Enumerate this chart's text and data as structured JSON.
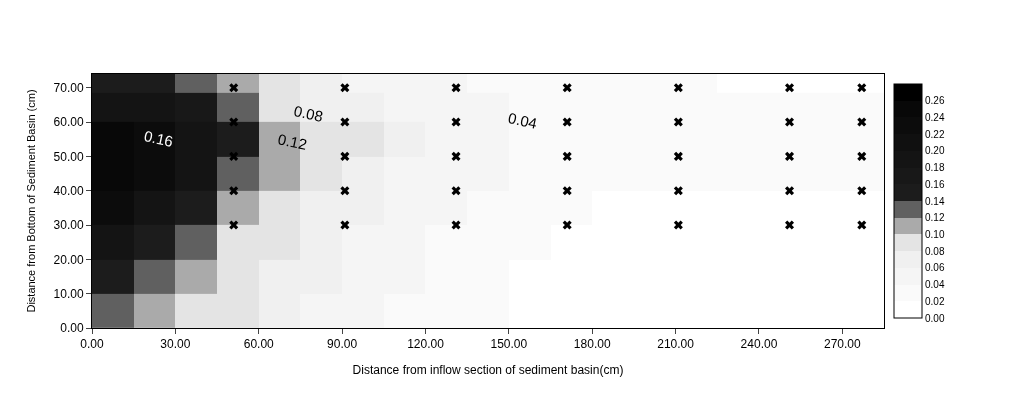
{
  "chart_data": {
    "type": "heatmap",
    "xlabel": "Distance from inflow section of sediment basin(cm)",
    "ylabel": "Distance from Bottom of Sediment Basin (cm)",
    "x": [
      7.5,
      22.5,
      37.5,
      52.5,
      67.5,
      82.5,
      97.5,
      112.5,
      127.5,
      142.5,
      157.5,
      172.5,
      187.5,
      202.5,
      217.5,
      232.5,
      247.5,
      262.5,
      277.5
    ],
    "y": [
      72,
      65,
      55,
      45,
      35,
      25,
      15,
      5
    ],
    "cells": [
      [
        0.15,
        0.15,
        0.13,
        0.11,
        0.09,
        0.07,
        0.05,
        0.05,
        0.05,
        0.03,
        0.03,
        0.03,
        0.03,
        0.03,
        0.03,
        0.01,
        0.01,
        0.01,
        0.01
      ],
      [
        0.19,
        0.19,
        0.17,
        0.13,
        0.09,
        0.07,
        0.07,
        0.05,
        0.05,
        0.05,
        0.03,
        0.03,
        0.03,
        0.03,
        0.03,
        0.03,
        0.03,
        0.03,
        0.03
      ],
      [
        0.25,
        0.23,
        0.19,
        0.15,
        0.11,
        0.09,
        0.09,
        0.07,
        0.05,
        0.05,
        0.03,
        0.03,
        0.03,
        0.03,
        0.03,
        0.03,
        0.03,
        0.03,
        0.03
      ],
      [
        0.25,
        0.23,
        0.19,
        0.13,
        0.11,
        0.09,
        0.07,
        0.05,
        0.05,
        0.05,
        0.03,
        0.03,
        0.03,
        0.03,
        0.03,
        0.03,
        0.03,
        0.03,
        0.03
      ],
      [
        0.23,
        0.19,
        0.15,
        0.11,
        0.09,
        0.07,
        0.07,
        0.05,
        0.05,
        0.03,
        0.03,
        0.03,
        0.01,
        0.01,
        0.01,
        0.01,
        0.01,
        0.01,
        0.01
      ],
      [
        0.19,
        0.15,
        0.13,
        0.09,
        0.09,
        0.07,
        0.05,
        0.05,
        0.03,
        0.03,
        0.03,
        0.01,
        0.01,
        0.01,
        0.01,
        0.01,
        0.01,
        0.01,
        0.01
      ],
      [
        0.15,
        0.13,
        0.11,
        0.09,
        0.07,
        0.07,
        0.05,
        0.05,
        0.03,
        0.03,
        0.01,
        0.01,
        0.01,
        0.01,
        0.01,
        0.01,
        0.01,
        0.01,
        0.01
      ],
      [
        0.13,
        0.11,
        0.09,
        0.09,
        0.07,
        0.05,
        0.05,
        0.03,
        0.03,
        0.03,
        0.01,
        0.01,
        0.01,
        0.01,
        0.01,
        0.01,
        0.01,
        0.01,
        0.01
      ]
    ],
    "clim": [
      0,
      0.28
    ],
    "cticks": [
      {
        "value": 0,
        "label": "0.00"
      },
      {
        "value": 0.02,
        "label": "0.02"
      },
      {
        "value": 0.04,
        "label": "0.04"
      },
      {
        "value": 0.06,
        "label": "0.06"
      },
      {
        "value": 0.08,
        "label": "0.08"
      },
      {
        "value": 0.1,
        "label": "0.10"
      },
      {
        "value": 0.12,
        "label": "0.12"
      },
      {
        "value": 0.14,
        "label": "0.14"
      },
      {
        "value": 0.16,
        "label": "0.16"
      },
      {
        "value": 0.18,
        "label": "0.18"
      },
      {
        "value": 0.2,
        "label": "0.20"
      },
      {
        "value": 0.22,
        "label": "0.22"
      },
      {
        "value": 0.24,
        "label": "0.24"
      },
      {
        "value": 0.26,
        "label": "0.26"
      }
    ],
    "colors": [
      "#ffffff",
      "#fafafa",
      "#f5f5f5",
      "#f0f0f0",
      "#e4e4e4",
      "#aaaaaa",
      "#606060",
      "#1c1c1c",
      "#181818",
      "#141414",
      "#101010",
      "#0c0c0c",
      "#080808",
      "#000000"
    ],
    "series": [
      {
        "type": "scatter",
        "color": "#000000",
        "marker": "cross",
        "x": [
          51,
          51,
          51,
          51,
          51,
          91,
          91,
          91,
          91,
          91,
          131,
          131,
          131,
          131,
          131,
          171,
          171,
          171,
          171,
          171,
          211,
          211,
          211,
          211,
          211,
          251,
          251,
          251,
          251,
          251,
          277,
          277,
          277,
          277,
          277
        ],
        "values": [
          30,
          40,
          50,
          60,
          70,
          30,
          40,
          50,
          60,
          70,
          30,
          40,
          50,
          60,
          70,
          30,
          40,
          50,
          60,
          70,
          30,
          40,
          50,
          60,
          70,
          30,
          40,
          50,
          60,
          70,
          30,
          40,
          50,
          60,
          70
        ]
      }
    ],
    "annotations": [
      "0.16",
      "0.12",
      "0.08",
      "0.04"
    ],
    "xlim": [
      0,
      285
    ],
    "ylim": [
      0,
      74
    ],
    "yticks": [
      {
        "value": 0,
        "label": "0.00"
      },
      {
        "value": 10,
        "label": "10.00"
      },
      {
        "value": 20,
        "label": "20.00"
      },
      {
        "value": 30,
        "label": "30.00"
      },
      {
        "value": 40,
        "label": "40.00"
      },
      {
        "value": 50,
        "label": "50.00"
      },
      {
        "value": 60,
        "label": "60.00"
      },
      {
        "value": 70,
        "label": "70.00"
      }
    ],
    "xticks": [
      {
        "value": 0,
        "label": "0.00"
      },
      {
        "value": 30,
        "label": "30.00"
      },
      {
        "value": 60,
        "label": "60.00"
      },
      {
        "value": 90,
        "label": "90.00"
      },
      {
        "value": 120,
        "label": "120.00"
      },
      {
        "value": 150,
        "label": "150.00"
      },
      {
        "value": 180,
        "label": "180.00"
      },
      {
        "value": 210,
        "label": "210.00"
      },
      {
        "value": 240,
        "label": "240.00"
      },
      {
        "value": 270,
        "label": "270.00"
      }
    ]
  }
}
